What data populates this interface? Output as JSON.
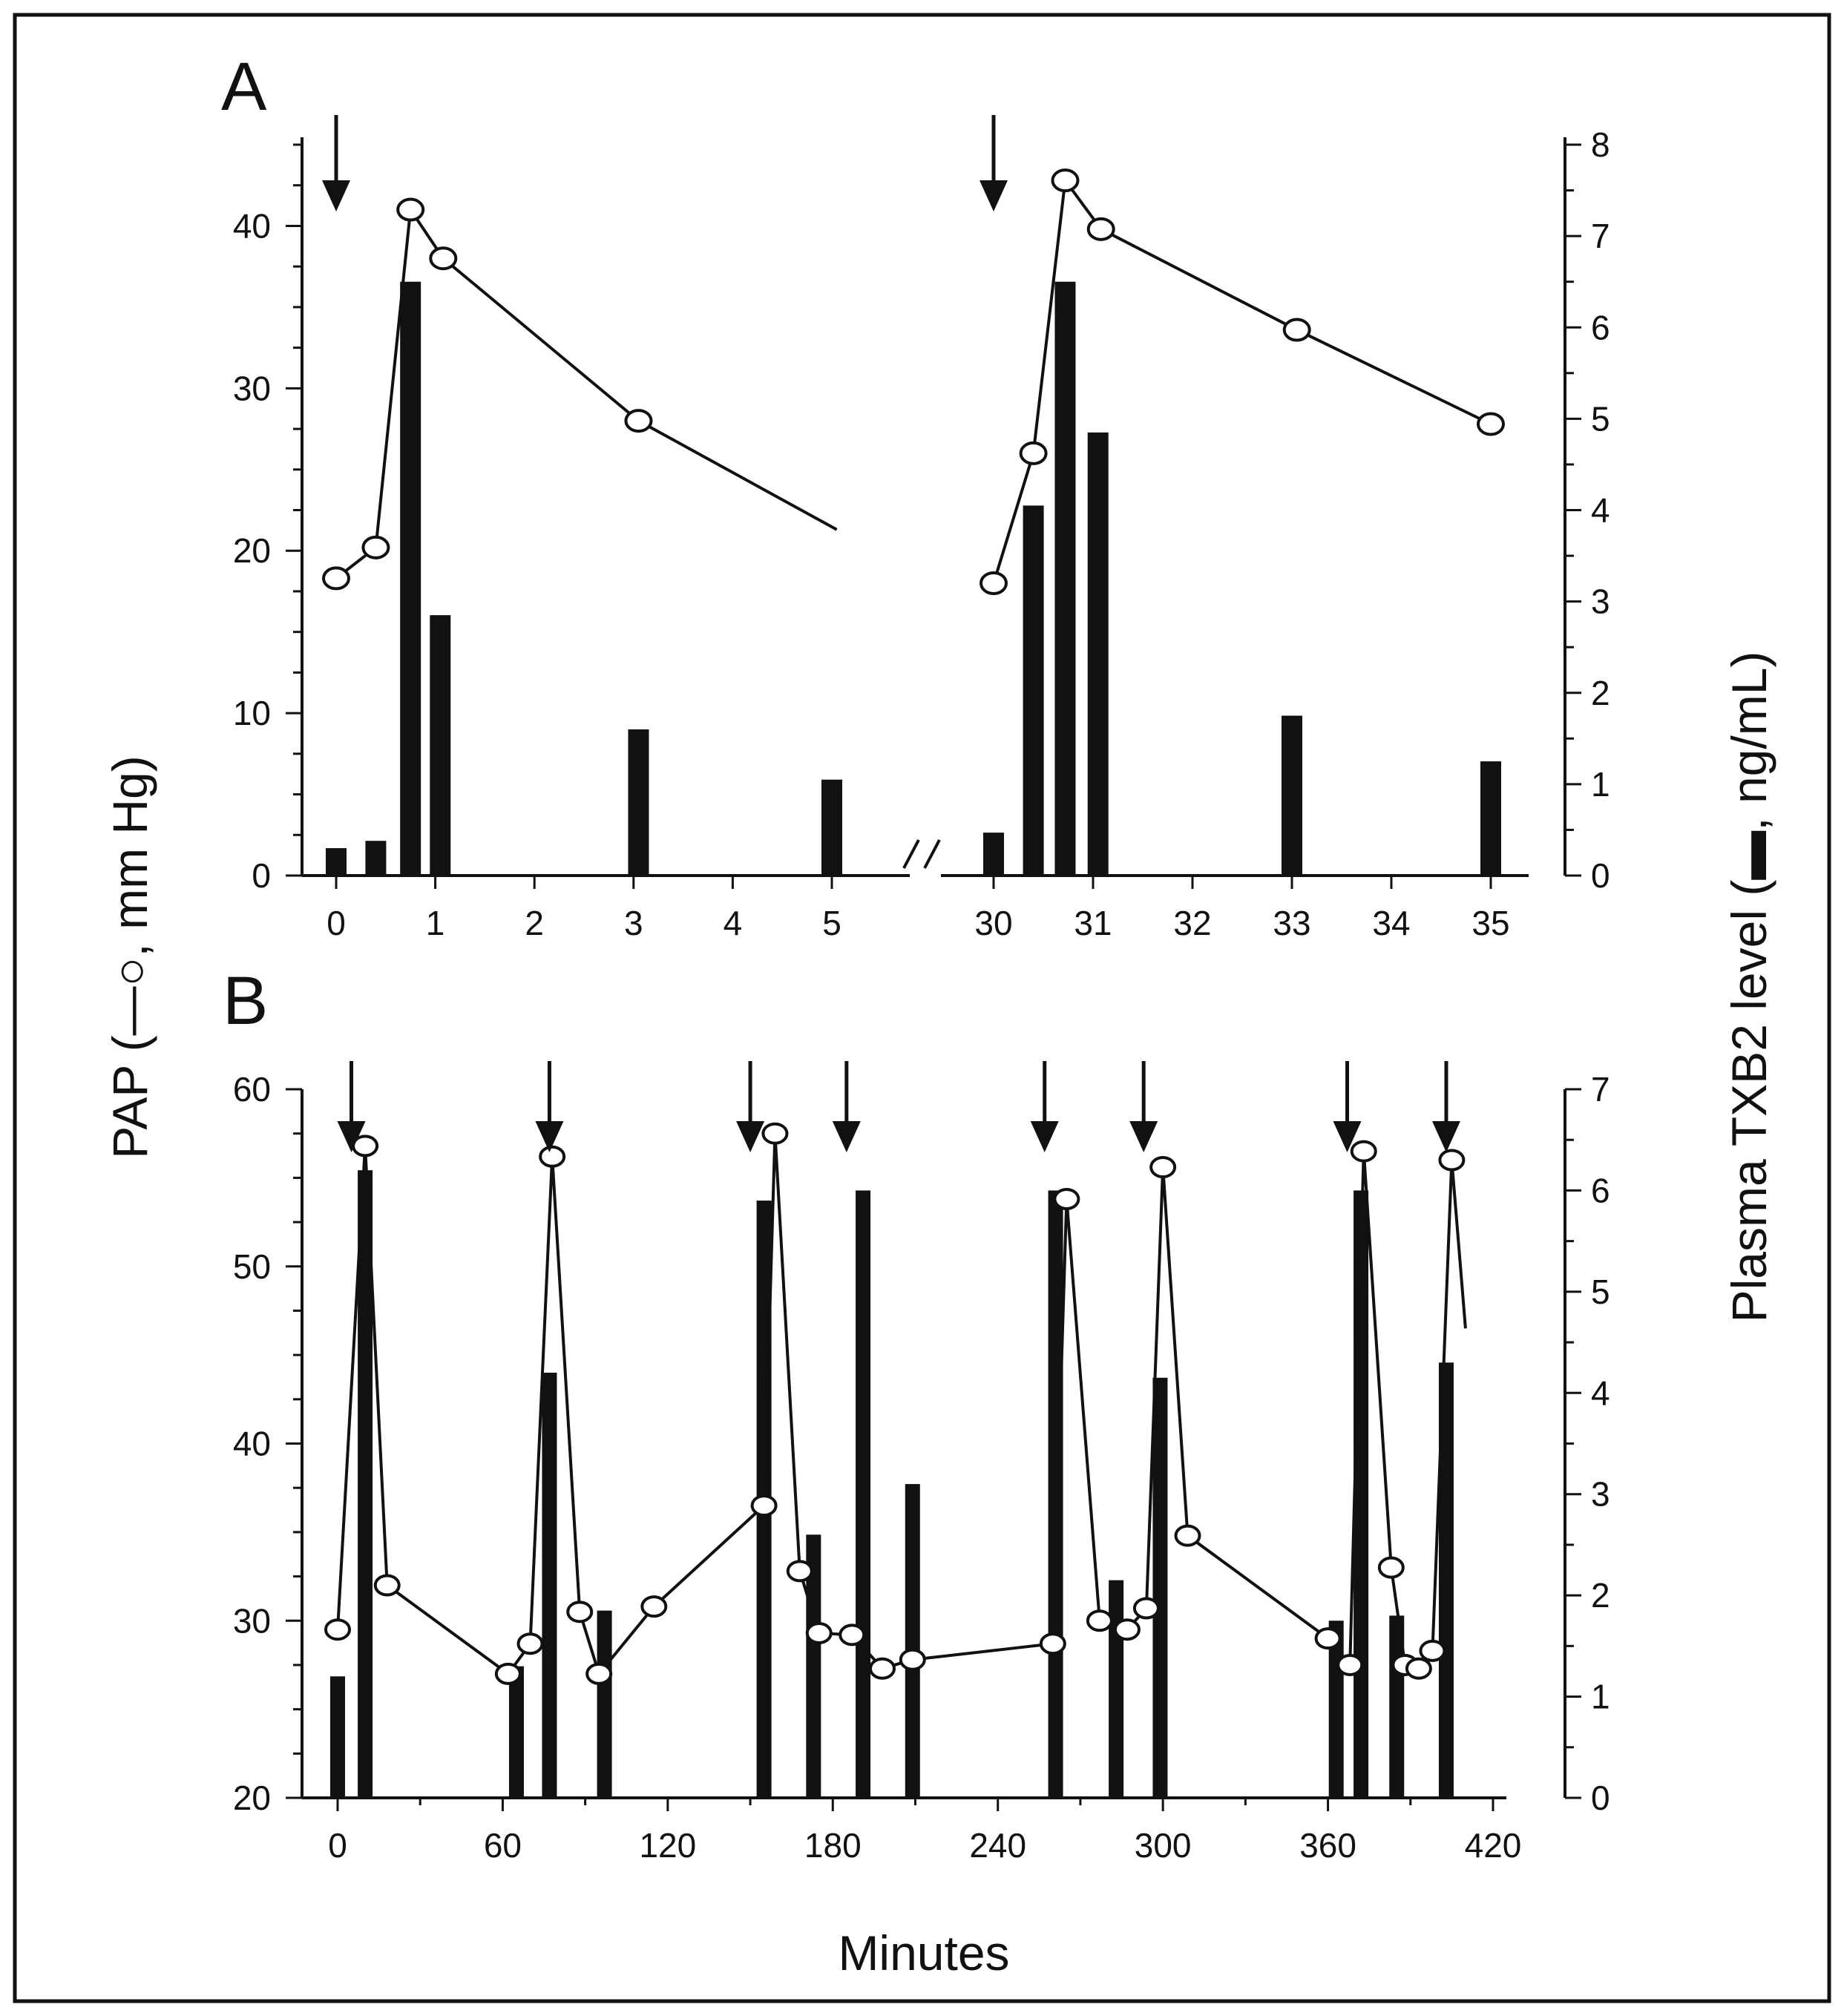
{
  "colors": {
    "ink": "#111111",
    "background": "#ffffff",
    "marker_fill": "#ffffff"
  },
  "y_left_title": "PAP (—○, mm Hg)",
  "y_right_title": "Plasma TXB2 level (▬, ng/mL)",
  "x_title": "Minutes",
  "chart_data": [
    {
      "panel": "A",
      "type": "line+bar",
      "xlabel": "",
      "ylabel_left": "PAP (mm Hg)",
      "ylabel_right": "Plasma TXB2 level (ng/mL)",
      "ylim_left": [
        0,
        45
      ],
      "ylim_right": [
        0,
        8
      ],
      "yticks_left": [
        "0",
        "10",
        "20",
        "30",
        "40"
      ],
      "yticks_right": [
        "0",
        "1",
        "2",
        "3",
        "4",
        "5",
        "6",
        "7",
        "8"
      ],
      "x_segments": [
        {
          "range": [
            0,
            5
          ],
          "ticks": [
            "0",
            "1",
            "2",
            "3",
            "4",
            "5"
          ]
        },
        {
          "range": [
            30,
            35
          ],
          "ticks": [
            "30",
            "31",
            "32",
            "33",
            "34",
            "35"
          ]
        }
      ],
      "axis_break": "//",
      "injection_arrows_x": [
        0,
        30
      ],
      "series": [
        {
          "name": "PAP",
          "kind": "line-open-circle",
          "axis": "left",
          "segments": [
            {
              "points": [
                [
                  0,
                  18.3
                ],
                [
                  0.4,
                  20.2
                ],
                [
                  0.75,
                  41.0
                ],
                [
                  1.08,
                  38.0
                ],
                [
                  3.05,
                  28.0
                ]
              ],
              "tail_to": [
                5.05,
                21.3
              ]
            },
            {
              "points": [
                [
                  30,
                  18.0
                ],
                [
                  30.4,
                  26.0
                ],
                [
                  30.72,
                  42.8
                ],
                [
                  31.08,
                  39.8
                ],
                [
                  33.05,
                  33.6
                ],
                [
                  35.0,
                  27.8
                ]
              ],
              "tail_to": null
            }
          ]
        },
        {
          "name": "Plasma TXB2",
          "kind": "bar",
          "axis": "right",
          "points": [
            [
              0,
              0.3
            ],
            [
              0.4,
              0.38
            ],
            [
              0.75,
              6.5
            ],
            [
              1.05,
              2.85
            ],
            [
              3.05,
              1.6
            ],
            [
              5.0,
              1.05
            ],
            [
              30,
              0.47
            ],
            [
              30.4,
              4.05
            ],
            [
              30.72,
              6.5
            ],
            [
              31.05,
              4.85
            ],
            [
              33.0,
              1.75
            ],
            [
              35.0,
              1.25
            ]
          ]
        }
      ]
    },
    {
      "panel": "B",
      "type": "line+bar",
      "xlabel": "Minutes",
      "ylabel_left": "PAP (mm Hg)",
      "ylabel_right": "Plasma TXB2 level (ng/mL)",
      "ylim_left": [
        20,
        60
      ],
      "ylim_right": [
        0,
        7
      ],
      "xlim": [
        0,
        420
      ],
      "xticks": [
        "0",
        "60",
        "120",
        "180",
        "240",
        "300",
        "360",
        "420"
      ],
      "yticks_left": [
        "20",
        "30",
        "40",
        "50",
        "60"
      ],
      "yticks_right": [
        "0",
        "1",
        "2",
        "3",
        "4",
        "5",
        "6",
        "7"
      ],
      "injection_arrows_x": [
        5,
        77,
        150,
        185,
        257,
        293,
        367,
        403
      ],
      "series": [
        {
          "name": "PAP",
          "kind": "line-open-circle",
          "axis": "left",
          "points": [
            [
              0,
              29.5
            ],
            [
              10,
              56.8
            ],
            [
              18,
              32.0
            ],
            [
              62,
              27.0
            ],
            [
              70,
              28.7
            ],
            [
              78,
              56.2
            ],
            [
              88,
              30.5
            ],
            [
              95,
              27.0
            ],
            [
              115,
              30.8
            ],
            [
              155,
              36.5
            ],
            [
              159,
              57.5
            ],
            [
              168,
              32.8
            ],
            [
              175,
              29.3
            ],
            [
              187,
              29.2
            ],
            [
              198,
              27.3
            ],
            [
              209,
              27.8
            ],
            [
              260,
              28.7
            ],
            [
              265,
              53.8
            ],
            [
              277,
              30.0
            ],
            [
              287,
              29.5
            ],
            [
              294,
              30.7
            ],
            [
              300,
              55.6
            ],
            [
              309,
              34.8
            ],
            [
              360,
              29.0
            ],
            [
              368,
              27.5
            ],
            [
              373,
              56.5
            ],
            [
              383,
              33.0
            ],
            [
              388,
              27.5
            ],
            [
              393,
              27.3
            ],
            [
              398,
              28.3
            ],
            [
              405,
              56.0
            ]
          ],
          "tail_to": [
            410,
            46.5
          ]
        },
        {
          "name": "Plasma TXB2",
          "kind": "bar",
          "axis": "right",
          "points": [
            [
              0,
              1.2
            ],
            [
              10,
              6.2
            ],
            [
              65,
              1.3
            ],
            [
              77,
              4.2
            ],
            [
              97,
              1.85
            ],
            [
              155,
              5.9
            ],
            [
              173,
              2.6
            ],
            [
              191,
              6.0
            ],
            [
              209,
              3.1
            ],
            [
              261,
              6.0
            ],
            [
              283,
              2.15
            ],
            [
              299,
              4.15
            ],
            [
              363,
              1.75
            ],
            [
              372,
              6.0
            ],
            [
              385,
              1.8
            ],
            [
              403,
              4.3
            ]
          ]
        }
      ]
    }
  ]
}
